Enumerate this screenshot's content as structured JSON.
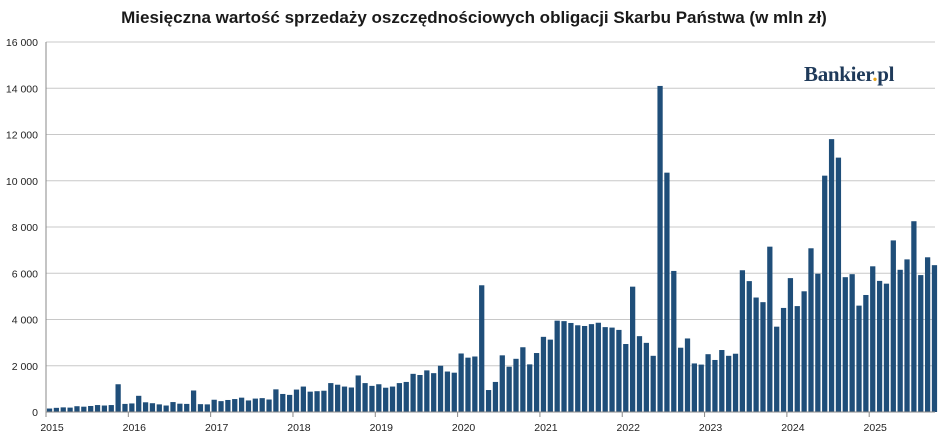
{
  "colors": {
    "bar": "#1f4e79",
    "grid": "#c8c8c8",
    "axis": "#888888"
  },
  "brand": {
    "name_pre": "Bankier",
    "name_dot": ".",
    "name_post": "pl"
  },
  "chart_data": {
    "type": "bar",
    "title": "Miesięczna wartość sprzedaży oszczędnościowych obligacji Skarbu Państwa (w mln zł)",
    "xlabel": "",
    "ylabel": "",
    "ylim": [
      0,
      16000
    ],
    "grid": true,
    "y_ticks": [
      0,
      2000,
      4000,
      6000,
      8000,
      10000,
      12000,
      14000,
      16000
    ],
    "y_tick_labels": [
      "0",
      "2 000",
      "4 000",
      "6 000",
      "8 000",
      "10 000",
      "12 000",
      "14 000",
      "16 000"
    ],
    "x_tick_labels": [
      "2015",
      "2016",
      "2017",
      "2018",
      "2019",
      "2020",
      "2021",
      "2022",
      "2023",
      "2024",
      "2025"
    ],
    "start_month": "2015-01",
    "values": [
      150,
      180,
      200,
      190,
      250,
      230,
      260,
      300,
      280,
      300,
      1200,
      350,
      370,
      700,
      420,
      380,
      330,
      280,
      430,
      360,
      350,
      930,
      340,
      330,
      530,
      470,
      520,
      560,
      620,
      500,
      580,
      600,
      540,
      980,
      780,
      740,
      970,
      1100,
      880,
      900,
      920,
      1250,
      1180,
      1100,
      1060,
      1580,
      1250,
      1130,
      1200,
      1050,
      1100,
      1250,
      1300,
      1650,
      1600,
      1800,
      1680,
      2000,
      1750,
      1700,
      2530,
      2350,
      2400,
      5480,
      950,
      1300,
      2450,
      1960,
      2300,
      2800,
      2060,
      2550,
      3250,
      3130,
      3950,
      3930,
      3850,
      3750,
      3720,
      3800,
      3860,
      3670,
      3650,
      3550,
      2940,
      5420,
      3280,
      2990,
      2430,
      14100,
      10350,
      6100,
      2780,
      3180,
      2100,
      2050,
      2500,
      2250,
      2680,
      2430,
      2520,
      6130,
      5660,
      4950,
      4750,
      7150,
      3690,
      4500,
      5790,
      4580,
      5220,
      7080,
      5980,
      10220,
      11800,
      11000,
      5830,
      5960,
      4600,
      5060,
      6300,
      5670,
      5550,
      7420,
      6150,
      6600,
      8250,
      5920,
      6690,
      6350
    ]
  }
}
